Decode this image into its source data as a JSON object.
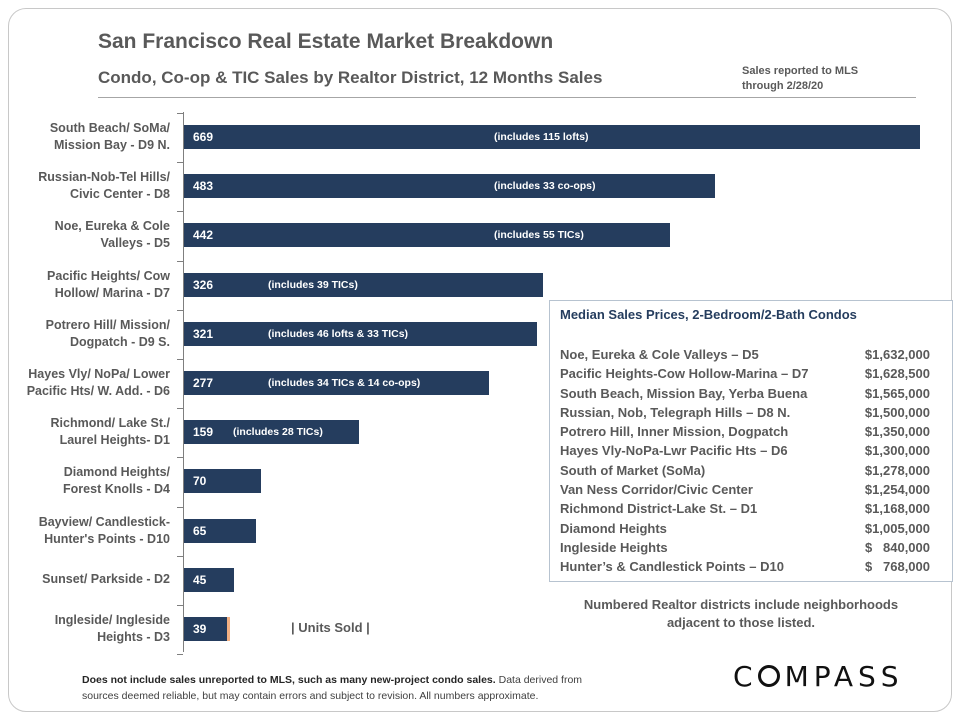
{
  "header": {
    "title": "San Francisco Real Estate Market Breakdown",
    "subtitle": "Condo, Co-op & TIC Sales by Realtor District, 12 Months Sales",
    "note_line1": "Sales reported to MLS",
    "note_line2": "through 2/28/20"
  },
  "chart_data": {
    "type": "bar",
    "orientation": "horizontal",
    "categories": [
      [
        "South Beach/ SoMa/",
        "Mission Bay - D9 N."
      ],
      [
        "Russian-Nob-Tel Hills/",
        "Civic Center - D8"
      ],
      [
        "Noe, Eureka & Cole",
        "Valleys - D5"
      ],
      [
        "Pacific Heights/ Cow",
        "Hollow/ Marina - D7"
      ],
      [
        "Potrero Hill/ Mission/",
        "Dogpatch - D9 S."
      ],
      [
        "Hayes Vly/ NoPa/ Lower",
        "Pacific Hts/ W. Add. - D6"
      ],
      [
        "Richmond/ Lake St./",
        "Laurel Heights- D1"
      ],
      [
        "Diamond Heights/",
        "Forest Knolls - D4"
      ],
      [
        "Bayview/ Candlestick-",
        "Hunter's Points - D10"
      ],
      [
        "Sunset/ Parkside - D2"
      ],
      [
        "Ingleside/ Ingleside",
        "Heights - D3"
      ]
    ],
    "values": [
      669,
      483,
      442,
      326,
      321,
      277,
      159,
      70,
      65,
      45,
      39
    ],
    "annotations": [
      "(includes 115 lofts)",
      "(includes 33 co-ops)",
      "(includes 55 TICs)",
      "(includes 39 TICs)",
      "(includes 46 lofts & 33 TICs)",
      "(includes 34 TICs & 14 co-ops)",
      "(includes 28 TICs)",
      "",
      "",
      "",
      ""
    ],
    "xlabel": "| Units Sold |",
    "xlim": [
      0,
      669
    ],
    "bar_color": "#253d5e",
    "grid": false
  },
  "price_table": {
    "title": "Median Sales Prices, 2-Bedroom/2-Bath Condos",
    "rows": [
      {
        "area": "Noe, Eureka & Cole Valleys – D5",
        "price": "$1,632,000"
      },
      {
        "area": "Pacific Heights-Cow Hollow-Marina – D7",
        "price": "$1,628,500"
      },
      {
        "area": "South Beach, Mission Bay, Yerba Buena",
        "price": "$1,565,000"
      },
      {
        "area": "Russian, Nob, Telegraph Hills – D8 N.",
        "price": "$1,500,000"
      },
      {
        "area": "Potrero Hill, Inner Mission, Dogpatch",
        "price": "$1,350,000"
      },
      {
        "area": "Hayes Vly-NoPa-Lwr Pacific Hts – D6",
        "price": "$1,300,000"
      },
      {
        "area": "South of Market (SoMa)",
        "price": "$1,278,000"
      },
      {
        "area": "Van Ness Corridor/Civic Center",
        "price": "$1,254,000"
      },
      {
        "area": "Richmond District-Lake St. – D1",
        "price": "$1,168,000"
      },
      {
        "area": "Diamond Heights",
        "price": "$1,005,000"
      },
      {
        "area": "Ingleside Heights",
        "price": "$   840,000"
      },
      {
        "area": "Hunter’s & Candlestick Points – D10",
        "price": "$   768,000"
      }
    ]
  },
  "district_note": "Numbered Realtor districts include neighborhoods adjacent to those listed.",
  "footer": {
    "bold": "Does not include sales unreported to MLS, such as many new-project condo sales.",
    "line1_rest": " Data derived from",
    "line2": "sources deemed reliable, but may contain errors and subject to revision. All numbers approximate."
  },
  "logo": "COMPASS"
}
